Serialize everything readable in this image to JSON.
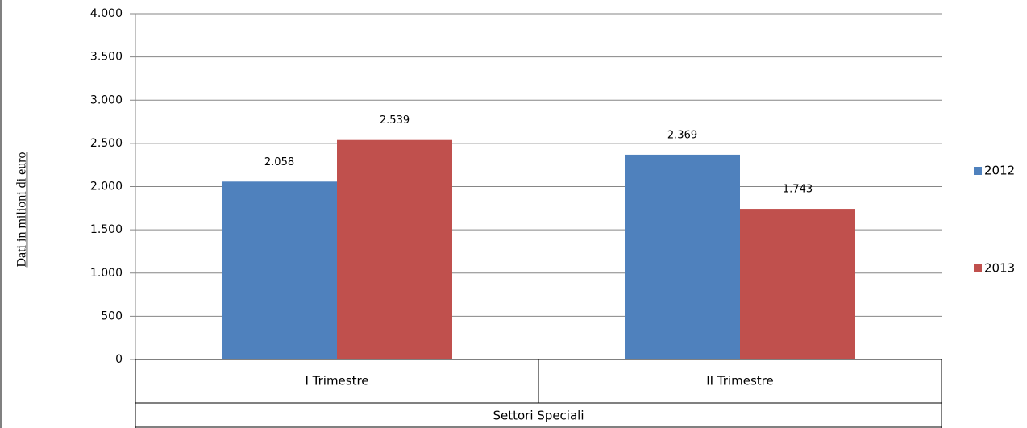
{
  "chart_data": {
    "type": "bar",
    "y_axis_label": "Dati in milioni di euro",
    "categories": [
      "I Trimestre",
      "II Trimestre"
    ],
    "group_label": "Settori Speciali",
    "series": [
      {
        "name": "2012",
        "color": "#4f81bd",
        "values": [
          2058,
          2369
        ],
        "value_labels": [
          "2.058",
          "2.369"
        ]
      },
      {
        "name": "2013",
        "color": "#c0504d",
        "values": [
          2539,
          1743
        ],
        "value_labels": [
          "2.539",
          "1.743"
        ]
      }
    ],
    "ylim": [
      0,
      4000
    ],
    "yticks": [
      {
        "value": 0,
        "label": "0"
      },
      {
        "value": 500,
        "label": "500"
      },
      {
        "value": 1000,
        "label": "1.000"
      },
      {
        "value": 1500,
        "label": "1.500"
      },
      {
        "value": 2000,
        "label": "2.000"
      },
      {
        "value": 2500,
        "label": "2.500"
      },
      {
        "value": 3000,
        "label": "3.000"
      },
      {
        "value": 3500,
        "label": "3.500"
      },
      {
        "value": 4000,
        "label": "4.000"
      }
    ],
    "grid": true,
    "legend": "right"
  }
}
